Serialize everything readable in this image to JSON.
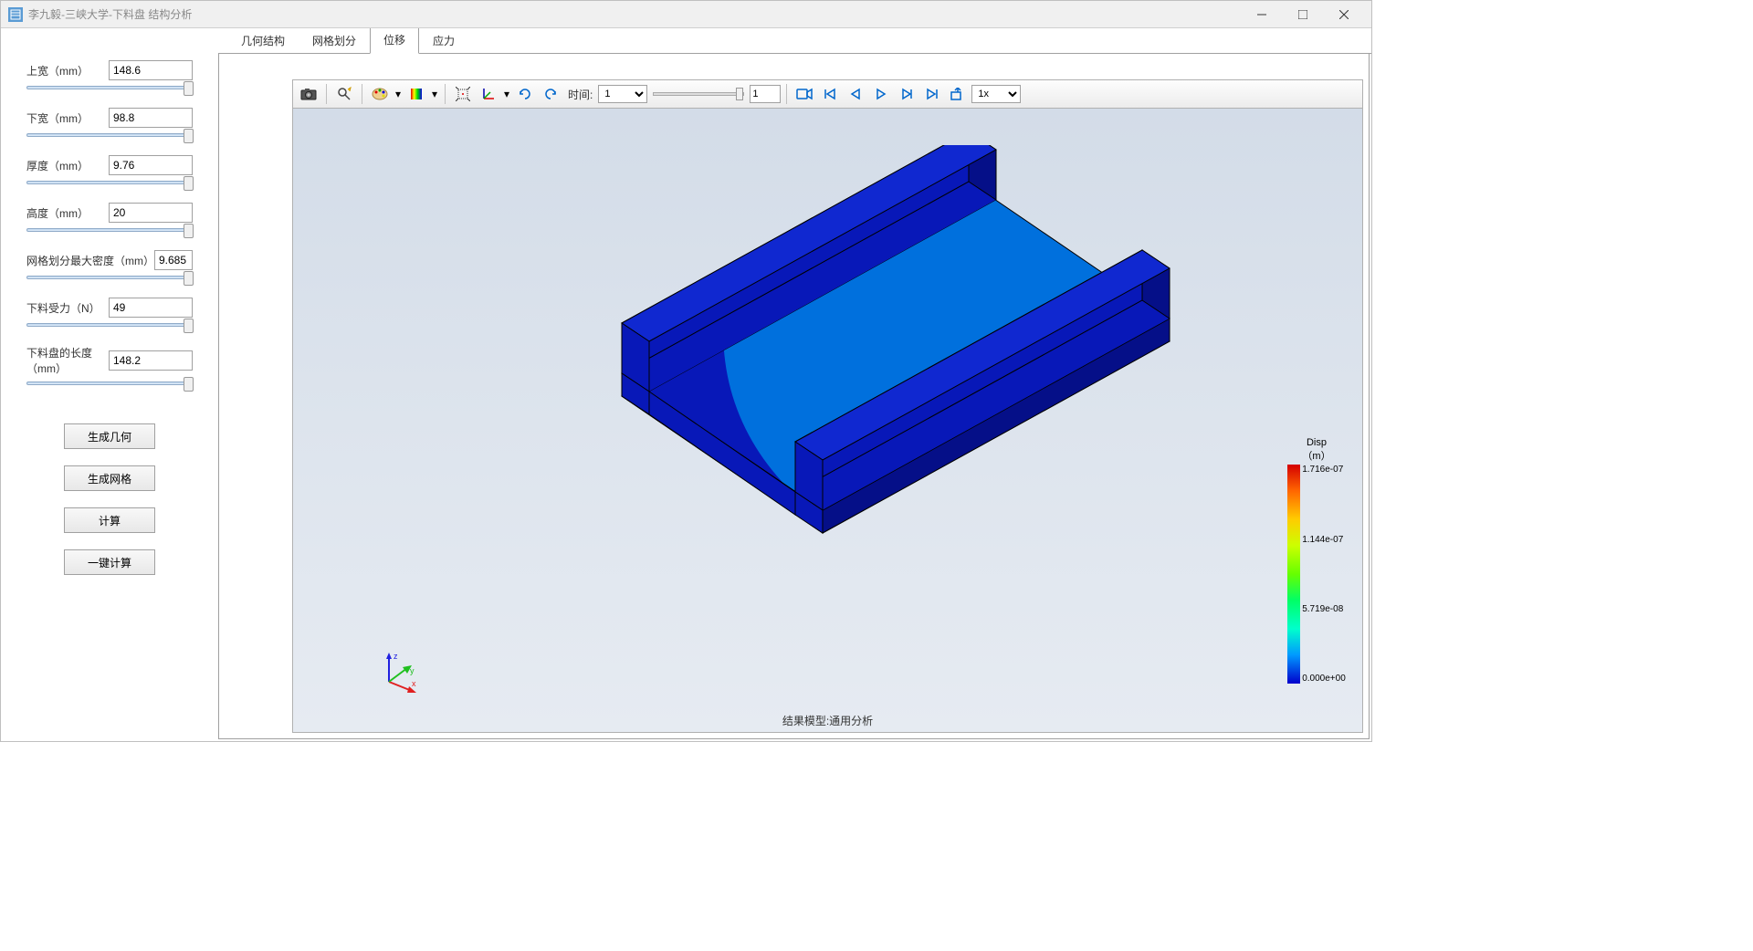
{
  "window": {
    "title": "李九毅-三峡大学-下料盘 结构分析",
    "minimize": "—",
    "maximize": "☐",
    "close": "✕"
  },
  "params": [
    {
      "label": "上宽（mm）",
      "value": "148.6",
      "slider": 98
    },
    {
      "label": "下宽（mm）",
      "value": "98.8",
      "slider": 98
    },
    {
      "label": "厚度（mm）",
      "value": "9.76",
      "slider": 98
    },
    {
      "label": "高度（mm）",
      "value": "20",
      "slider": 98
    },
    {
      "label": "网格划分最大密度（mm）",
      "value": "9.685",
      "slider": 98,
      "narrow": true
    },
    {
      "label": "下料受力（N）",
      "value": "49",
      "slider": 98
    },
    {
      "label": "下料盘的长度（mm）",
      "value": "148.2",
      "slider": 98
    }
  ],
  "buttons": {
    "gen_geom": "生成几何",
    "gen_mesh": "生成网格",
    "compute": "计算",
    "one_click": "一键计算"
  },
  "tabs": [
    {
      "label": "几何结构",
      "active": false
    },
    {
      "label": "网格划分",
      "active": false
    },
    {
      "label": "位移",
      "active": true
    },
    {
      "label": "应力",
      "active": false
    }
  ],
  "toolbar": {
    "time_label": "时间:",
    "time_value": "1",
    "spin_value": "1",
    "speed_value": "1x"
  },
  "legend": {
    "title1": "Disp",
    "title2": "（m）",
    "v0": "1.716e-07",
    "v1": "1.144e-07",
    "v2": "5.719e-08",
    "v3": "0.000e+00"
  },
  "status": "结果模型:通用分析",
  "axis": {
    "x": "x",
    "y": "y",
    "z": "z"
  },
  "model": {
    "colors": {
      "wall": "#0818b8",
      "wall_dark": "#050f88",
      "edge": "#000000"
    },
    "contour_offsets": [
      0,
      55,
      110,
      165,
      220,
      275,
      330,
      385,
      440,
      500
    ],
    "contour_colors": [
      "#0818b8",
      "#0070dd",
      "#00b8d4",
      "#00d4a0",
      "#38e060",
      "#90ee40",
      "#d4ee20",
      "#ffcc00",
      "#ff7700",
      "#e02000"
    ]
  }
}
